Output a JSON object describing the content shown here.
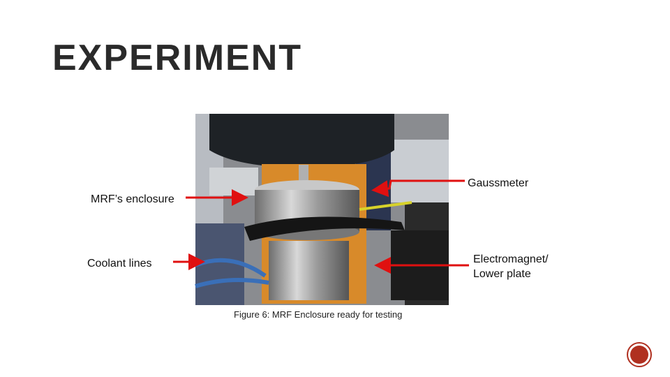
{
  "slide": {
    "title": "EXPERIMENT",
    "figure": {
      "caption": "Figure 6: MRF Enclosure ready for testing",
      "labels": {
        "gaussmeter": "Gaussmeter",
        "enclosure": "MRF’s enclosure",
        "coolant": "Coolant lines",
        "electromagnet": [
          "Electromagnet/",
          "Lower plate"
        ]
      }
    }
  }
}
